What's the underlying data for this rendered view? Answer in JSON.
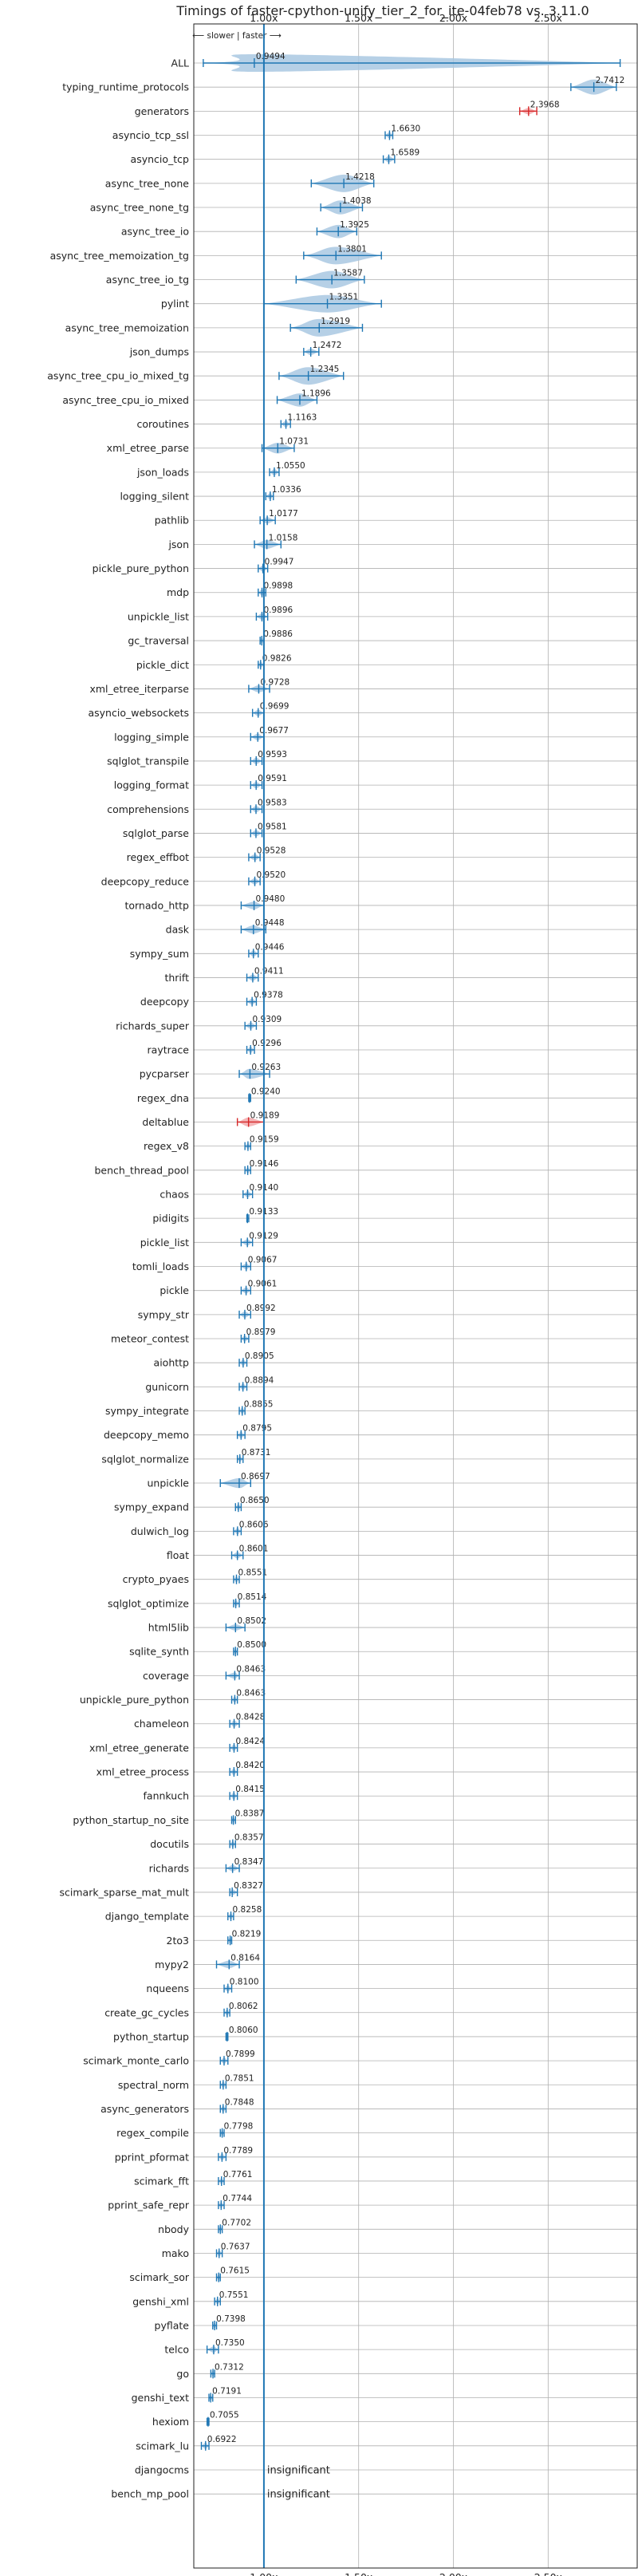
{
  "chart_data": {
    "type": "violin",
    "title": "Timings of faster-cpython-unify_tier_2_for_ite-04feb78 vs. 3.11.0",
    "direction_note": "⟵ slower | faster ⟶",
    "x_ticks": [
      "1.00x",
      "1.50x",
      "2.00x",
      "2.50x"
    ],
    "x_tick_values": [
      1.0,
      1.5,
      2.0,
      2.5
    ],
    "xlim": [
      0.63,
      2.97
    ],
    "reference_line": 1.0,
    "colors": {
      "faster": "#1f77b4",
      "violin_fill": "#a9c8e2",
      "slower": "#d62728",
      "slower_fill": "#f2a9ab"
    },
    "benchmarks": [
      {
        "name": "ALL",
        "value": 0.9494,
        "low": 0.68,
        "high": 2.88
      },
      {
        "name": "typing_runtime_protocols",
        "value": 2.7412,
        "low": 2.62,
        "high": 2.86
      },
      {
        "name": "generators",
        "value": 2.3968,
        "low": 2.35,
        "high": 2.44
      },
      {
        "name": "asyncio_tcp_ssl",
        "value": 1.663,
        "low": 1.64,
        "high": 1.68
      },
      {
        "name": "asyncio_tcp",
        "value": 1.6589,
        "low": 1.63,
        "high": 1.69
      },
      {
        "name": "async_tree_none",
        "value": 1.4218,
        "low": 1.25,
        "high": 1.58
      },
      {
        "name": "async_tree_none_tg",
        "value": 1.4038,
        "low": 1.3,
        "high": 1.52
      },
      {
        "name": "async_tree_io",
        "value": 1.3925,
        "low": 1.28,
        "high": 1.49
      },
      {
        "name": "async_tree_memoization_tg",
        "value": 1.3801,
        "low": 1.21,
        "high": 1.62
      },
      {
        "name": "async_tree_io_tg",
        "value": 1.3587,
        "low": 1.17,
        "high": 1.53
      },
      {
        "name": "pylint",
        "value": 1.3351,
        "low": 1.0,
        "high": 1.62
      },
      {
        "name": "async_tree_memoization",
        "value": 1.2919,
        "low": 1.14,
        "high": 1.52
      },
      {
        "name": "json_dumps",
        "value": 1.2472,
        "low": 1.21,
        "high": 1.29
      },
      {
        "name": "async_tree_cpu_io_mixed_tg",
        "value": 1.2345,
        "low": 1.08,
        "high": 1.42
      },
      {
        "name": "async_tree_cpu_io_mixed",
        "value": 1.1896,
        "low": 1.07,
        "high": 1.28
      },
      {
        "name": "coroutines",
        "value": 1.1163,
        "low": 1.09,
        "high": 1.14
      },
      {
        "name": "xml_etree_parse",
        "value": 1.0731,
        "low": 0.99,
        "high": 1.16
      },
      {
        "name": "json_loads",
        "value": 1.055,
        "low": 1.03,
        "high": 1.08
      },
      {
        "name": "logging_silent",
        "value": 1.0336,
        "low": 1.01,
        "high": 1.05
      },
      {
        "name": "pathlib",
        "value": 1.0177,
        "low": 0.98,
        "high": 1.06
      },
      {
        "name": "json",
        "value": 1.0158,
        "low": 0.95,
        "high": 1.09
      },
      {
        "name": "pickle_pure_python",
        "value": 0.9947,
        "low": 0.97,
        "high": 1.02
      },
      {
        "name": "mdp",
        "value": 0.9898,
        "low": 0.97,
        "high": 1.01
      },
      {
        "name": "unpickle_list",
        "value": 0.9896,
        "low": 0.96,
        "high": 1.02
      },
      {
        "name": "gc_traversal",
        "value": 0.9886,
        "low": 0.98,
        "high": 1.0
      },
      {
        "name": "pickle_dict",
        "value": 0.9826,
        "low": 0.97,
        "high": 1.0
      },
      {
        "name": "xml_etree_iterparse",
        "value": 0.9728,
        "low": 0.92,
        "high": 1.03
      },
      {
        "name": "asyncio_websockets",
        "value": 0.9699,
        "low": 0.94,
        "high": 1.0
      },
      {
        "name": "logging_simple",
        "value": 0.9677,
        "low": 0.93,
        "high": 1.0
      },
      {
        "name": "sqlglot_transpile",
        "value": 0.9593,
        "low": 0.93,
        "high": 0.99
      },
      {
        "name": "logging_format",
        "value": 0.9591,
        "low": 0.93,
        "high": 0.99
      },
      {
        "name": "comprehensions",
        "value": 0.9583,
        "low": 0.93,
        "high": 0.99
      },
      {
        "name": "sqlglot_parse",
        "value": 0.9581,
        "low": 0.93,
        "high": 0.99
      },
      {
        "name": "regex_effbot",
        "value": 0.9528,
        "low": 0.92,
        "high": 0.98
      },
      {
        "name": "deepcopy_reduce",
        "value": 0.952,
        "low": 0.92,
        "high": 0.98
      },
      {
        "name": "tornado_http",
        "value": 0.948,
        "low": 0.88,
        "high": 1.0
      },
      {
        "name": "dask",
        "value": 0.9448,
        "low": 0.88,
        "high": 1.01
      },
      {
        "name": "sympy_sum",
        "value": 0.9446,
        "low": 0.92,
        "high": 0.97
      },
      {
        "name": "thrift",
        "value": 0.9411,
        "low": 0.91,
        "high": 0.97
      },
      {
        "name": "deepcopy",
        "value": 0.9378,
        "low": 0.91,
        "high": 0.96
      },
      {
        "name": "richards_super",
        "value": 0.9309,
        "low": 0.9,
        "high": 0.96
      },
      {
        "name": "raytrace",
        "value": 0.9296,
        "low": 0.91,
        "high": 0.95
      },
      {
        "name": "pycparser",
        "value": 0.9263,
        "low": 0.87,
        "high": 1.03
      },
      {
        "name": "regex_dna",
        "value": 0.924,
        "low": 0.92,
        "high": 0.93
      },
      {
        "name": "deltablue",
        "value": 0.9189,
        "low": 0.86,
        "high": 1.0
      },
      {
        "name": "regex_v8",
        "value": 0.9159,
        "low": 0.9,
        "high": 0.93
      },
      {
        "name": "bench_thread_pool",
        "value": 0.9146,
        "low": 0.9,
        "high": 0.93
      },
      {
        "name": "chaos",
        "value": 0.914,
        "low": 0.89,
        "high": 0.94
      },
      {
        "name": "pidigits",
        "value": 0.9133,
        "low": 0.91,
        "high": 0.92
      },
      {
        "name": "pickle_list",
        "value": 0.9129,
        "low": 0.88,
        "high": 0.94
      },
      {
        "name": "tomli_loads",
        "value": 0.9067,
        "low": 0.88,
        "high": 0.93
      },
      {
        "name": "pickle",
        "value": 0.9061,
        "low": 0.88,
        "high": 0.93
      },
      {
        "name": "sympy_str",
        "value": 0.8992,
        "low": 0.87,
        "high": 0.93
      },
      {
        "name": "meteor_contest",
        "value": 0.8979,
        "low": 0.88,
        "high": 0.92
      },
      {
        "name": "aiohttp",
        "value": 0.8905,
        "low": 0.87,
        "high": 0.91
      },
      {
        "name": "gunicorn",
        "value": 0.8894,
        "low": 0.87,
        "high": 0.91
      },
      {
        "name": "sympy_integrate",
        "value": 0.8855,
        "low": 0.87,
        "high": 0.9
      },
      {
        "name": "deepcopy_memo",
        "value": 0.8795,
        "low": 0.86,
        "high": 0.9
      },
      {
        "name": "sqlglot_normalize",
        "value": 0.8731,
        "low": 0.86,
        "high": 0.89
      },
      {
        "name": "unpickle",
        "value": 0.8697,
        "low": 0.77,
        "high": 0.93
      },
      {
        "name": "sympy_expand",
        "value": 0.865,
        "low": 0.85,
        "high": 0.88
      },
      {
        "name": "dulwich_log",
        "value": 0.8606,
        "low": 0.84,
        "high": 0.88
      },
      {
        "name": "float",
        "value": 0.8601,
        "low": 0.83,
        "high": 0.89
      },
      {
        "name": "crypto_pyaes",
        "value": 0.8551,
        "low": 0.84,
        "high": 0.87
      },
      {
        "name": "sqlglot_optimize",
        "value": 0.8514,
        "low": 0.84,
        "high": 0.87
      },
      {
        "name": "html5lib",
        "value": 0.8502,
        "low": 0.8,
        "high": 0.9
      },
      {
        "name": "sqlite_synth",
        "value": 0.85,
        "low": 0.84,
        "high": 0.86
      },
      {
        "name": "coverage",
        "value": 0.8463,
        "low": 0.8,
        "high": 0.87
      },
      {
        "name": "unpickle_pure_python",
        "value": 0.8463,
        "low": 0.83,
        "high": 0.86
      },
      {
        "name": "chameleon",
        "value": 0.8428,
        "low": 0.82,
        "high": 0.87
      },
      {
        "name": "xml_etree_generate",
        "value": 0.8424,
        "low": 0.82,
        "high": 0.86
      },
      {
        "name": "xml_etree_process",
        "value": 0.842,
        "low": 0.82,
        "high": 0.86
      },
      {
        "name": "fannkuch",
        "value": 0.8415,
        "low": 0.82,
        "high": 0.86
      },
      {
        "name": "python_startup_no_site",
        "value": 0.8387,
        "low": 0.83,
        "high": 0.85
      },
      {
        "name": "docutils",
        "value": 0.8357,
        "low": 0.82,
        "high": 0.85
      },
      {
        "name": "richards",
        "value": 0.8347,
        "low": 0.8,
        "high": 0.87
      },
      {
        "name": "scimark_sparse_mat_mult",
        "value": 0.8327,
        "low": 0.82,
        "high": 0.86
      },
      {
        "name": "django_template",
        "value": 0.8258,
        "low": 0.81,
        "high": 0.84
      },
      {
        "name": "2to3",
        "value": 0.8219,
        "low": 0.81,
        "high": 0.83
      },
      {
        "name": "mypy2",
        "value": 0.8164,
        "low": 0.75,
        "high": 0.87
      },
      {
        "name": "nqueens",
        "value": 0.81,
        "low": 0.79,
        "high": 0.83
      },
      {
        "name": "create_gc_cycles",
        "value": 0.8062,
        "low": 0.79,
        "high": 0.82
      },
      {
        "name": "python_startup",
        "value": 0.806,
        "low": 0.8,
        "high": 0.81
      },
      {
        "name": "scimark_monte_carlo",
        "value": 0.7899,
        "low": 0.77,
        "high": 0.81
      },
      {
        "name": "spectral_norm",
        "value": 0.7851,
        "low": 0.77,
        "high": 0.8
      },
      {
        "name": "async_generators",
        "value": 0.7848,
        "low": 0.77,
        "high": 0.8
      },
      {
        "name": "regex_compile",
        "value": 0.7798,
        "low": 0.77,
        "high": 0.79
      },
      {
        "name": "pprint_pformat",
        "value": 0.7789,
        "low": 0.76,
        "high": 0.8
      },
      {
        "name": "scimark_fft",
        "value": 0.7761,
        "low": 0.76,
        "high": 0.79
      },
      {
        "name": "pprint_safe_repr",
        "value": 0.7744,
        "low": 0.76,
        "high": 0.79
      },
      {
        "name": "nbody",
        "value": 0.7702,
        "low": 0.76,
        "high": 0.78
      },
      {
        "name": "mako",
        "value": 0.7637,
        "low": 0.75,
        "high": 0.78
      },
      {
        "name": "scimark_sor",
        "value": 0.7615,
        "low": 0.75,
        "high": 0.77
      },
      {
        "name": "genshi_xml",
        "value": 0.7551,
        "low": 0.74,
        "high": 0.77
      },
      {
        "name": "pyflate",
        "value": 0.7398,
        "low": 0.73,
        "high": 0.75
      },
      {
        "name": "telco",
        "value": 0.735,
        "low": 0.7,
        "high": 0.76
      },
      {
        "name": "go",
        "value": 0.7312,
        "low": 0.72,
        "high": 0.74
      },
      {
        "name": "genshi_text",
        "value": 0.7191,
        "low": 0.71,
        "high": 0.73
      },
      {
        "name": "hexiom",
        "value": 0.7055,
        "low": 0.7,
        "high": 0.71
      },
      {
        "name": "scimark_lu",
        "value": 0.6922,
        "low": 0.67,
        "high": 0.71
      },
      {
        "name": "djangocms",
        "value": null,
        "note": "insignificant"
      },
      {
        "name": "bench_mp_pool",
        "value": null,
        "note": "insignificant"
      }
    ]
  }
}
